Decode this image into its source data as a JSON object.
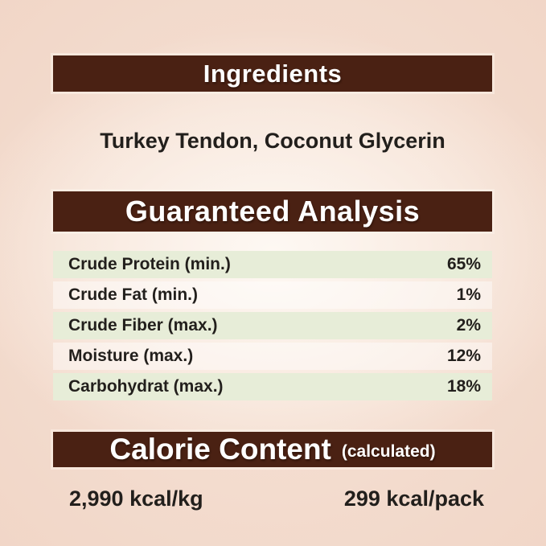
{
  "label": {
    "colors": {
      "bar_brown": "#4a2113",
      "row_green": "#e7edd8",
      "page_pink": "#efd0c1",
      "text_dark": "#221f1c",
      "header_text": "#ffffff"
    },
    "ingredients": {
      "header": "Ingredients",
      "list": "Turkey Tendon, Coconut Glycerin"
    },
    "guaranteed_analysis": {
      "header": "Guaranteed Analysis",
      "rows": [
        {
          "label": "Crude Protein (min.)",
          "value": "65%"
        },
        {
          "label": "Crude Fat (min.)",
          "value": "1%"
        },
        {
          "label": "Crude Fiber (max.)",
          "value": "2%"
        },
        {
          "label": "Moisture (max.)",
          "value": "12%"
        },
        {
          "label": "Carbohydrat (max.)",
          "value": "18%"
        }
      ]
    },
    "calorie_content": {
      "header": "Calorie Content",
      "note": "(calculated)",
      "per_kg": "2,990 kcal/kg",
      "per_pack": "299 kcal/pack"
    }
  }
}
